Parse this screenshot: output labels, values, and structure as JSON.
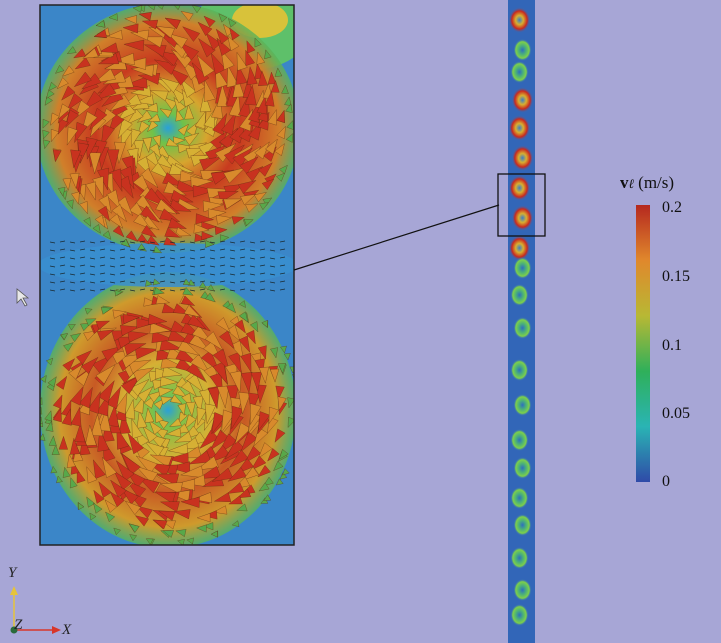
{
  "colorbar": {
    "title_symbol": "v",
    "title_subscript": "ℓ",
    "title_unit": "(m/s)",
    "ticks": [
      "0.2",
      "0.15",
      "0.1",
      "0.05",
      "0"
    ],
    "colors": [
      "#b5281f",
      "#e0882c",
      "#b8b834",
      "#2fb05a",
      "#2ab4b4",
      "#2f4aa8"
    ]
  },
  "axes": {
    "y_label": "Y",
    "z_label": "Z",
    "x_label": "X",
    "y_color": "#e6c43a",
    "x_color": "#d8362a"
  },
  "colors": {
    "background": "#a7a6d6",
    "field_low": "#2e5db8",
    "field_mid": "#3fb0a0",
    "field_high": "#c8321f",
    "arrow_mid": "#d8b03a"
  }
}
